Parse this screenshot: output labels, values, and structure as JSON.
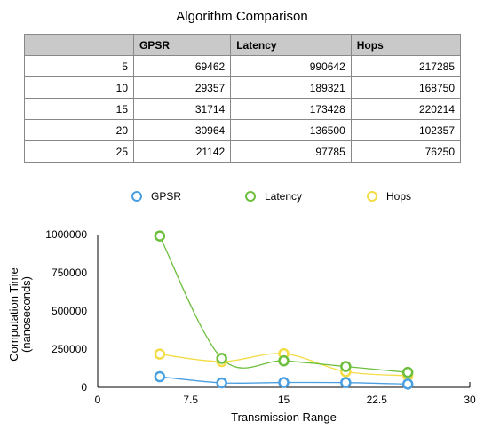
{
  "table": {
    "title": "Algorithm Comparison",
    "headers": [
      "",
      "GPSR",
      "Latency",
      "Hops"
    ],
    "rows": [
      [
        "5",
        "69462",
        "990642",
        "217285"
      ],
      [
        "10",
        "29357",
        "189321",
        "168750"
      ],
      [
        "15",
        "31714",
        "173428",
        "220214"
      ],
      [
        "20",
        "30964",
        "136500",
        "102357"
      ],
      [
        "25",
        "21142",
        "97785",
        "76250"
      ]
    ]
  },
  "chart_data": {
    "type": "line",
    "xlabel": "Transmission Range",
    "ylabel": [
      "Computation Time",
      "(nanoseconds)"
    ],
    "x": [
      5,
      10,
      15,
      20,
      25
    ],
    "xlim": [
      0,
      30
    ],
    "ylim": [
      0,
      1000000
    ],
    "xticks": [
      "0",
      "7.5",
      "15",
      "22.5",
      "30"
    ],
    "yticks": [
      "0",
      "250000",
      "500000",
      "750000",
      "1000000"
    ],
    "legend_position": "top",
    "series": [
      {
        "name": "GPSR",
        "color": "#4a9fe0",
        "values": [
          69462,
          29357,
          31714,
          30964,
          21142
        ]
      },
      {
        "name": "Latency",
        "color": "#6cbf3c",
        "values": [
          990642,
          189321,
          173428,
          136500,
          97785
        ]
      },
      {
        "name": "Hops",
        "color": "#f4dc45",
        "values": [
          217285,
          168750,
          220214,
          102357,
          76250
        ]
      }
    ]
  }
}
